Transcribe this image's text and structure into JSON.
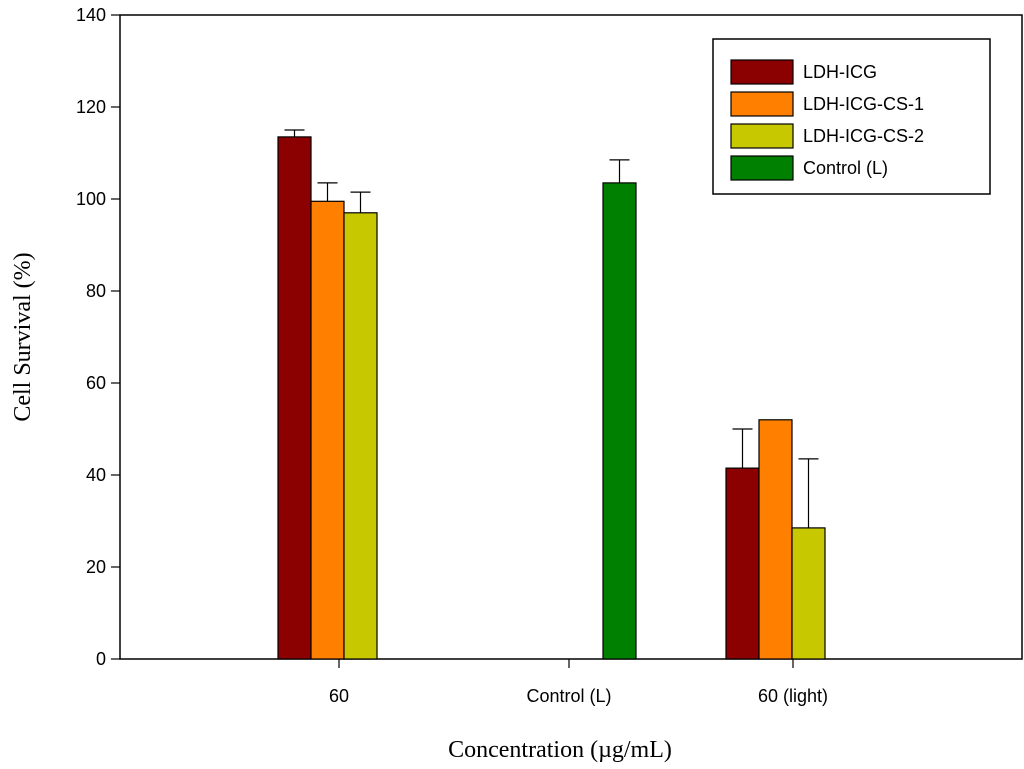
{
  "chart_data": {
    "type": "bar",
    "title": "",
    "xlabel": "Concentration (µg/mL)",
    "ylabel": "Cell Survival (%)",
    "ylim": [
      0,
      140
    ],
    "yticks": [
      "0",
      "20",
      "40",
      "60",
      "80",
      "100",
      "120",
      "140"
    ],
    "categories": [
      "60",
      "Control (L)",
      "60 (light)"
    ],
    "legend_position": "top-right",
    "series": [
      {
        "name": "LDH-ICG",
        "color": "#8b0000",
        "values": [
          113.5,
          null,
          41.5
        ],
        "errors": [
          1.5,
          null,
          8.5
        ]
      },
      {
        "name": "LDH-ICG-CS-1",
        "color": "#ff8000",
        "values": [
          99.5,
          null,
          52.0
        ],
        "errors": [
          4.0,
          null,
          0.0
        ]
      },
      {
        "name": "LDH-ICG-CS-2",
        "color": "#c8c800",
        "values": [
          97.0,
          null,
          28.5
        ],
        "errors": [
          4.5,
          null,
          15.0
        ]
      },
      {
        "name": "Control (L)",
        "color": "#008000",
        "values": [
          null,
          103.5,
          null
        ],
        "errors": [
          null,
          5.0,
          null
        ]
      }
    ]
  }
}
